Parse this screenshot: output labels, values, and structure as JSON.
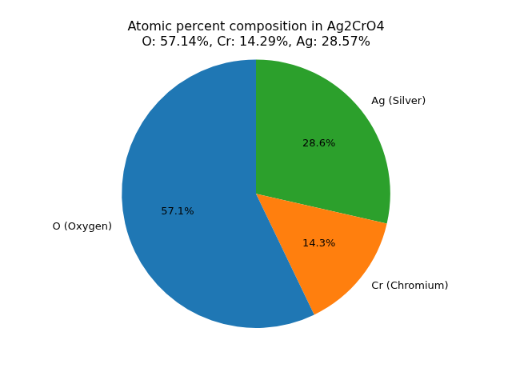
{
  "chart_data": {
    "type": "pie",
    "title": "Atomic percent composition in Ag2CrO4",
    "subtitle": "O: 57.14%, Cr: 14.29%, Ag: 28.57%",
    "categories": [
      "O (Oxygen)",
      "Cr (Chromium)",
      "Ag (Silver)"
    ],
    "values": [
      57.14,
      14.29,
      28.57
    ],
    "value_labels": [
      "57.1%",
      "14.3%",
      "28.6%"
    ],
    "colors": [
      "#1f77b4",
      "#ff7f0e",
      "#2ca02c"
    ],
    "data_labels": true
  }
}
